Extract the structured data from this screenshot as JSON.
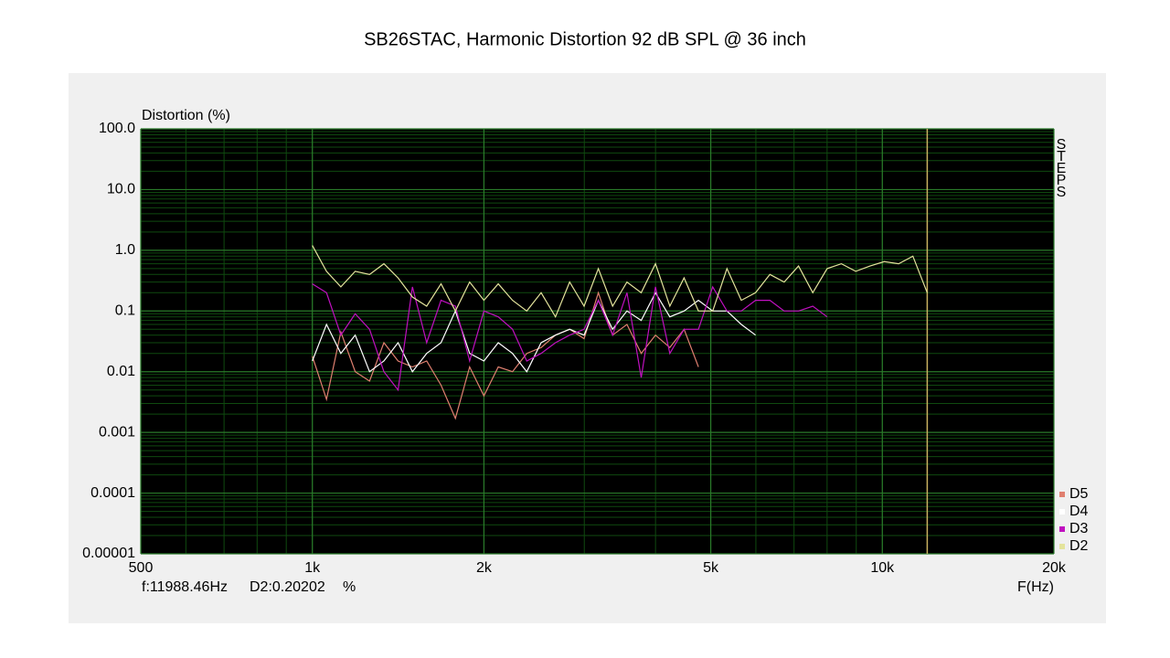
{
  "chart_data": {
    "type": "line",
    "title": "SB26STAC, Harmonic Distortion 92 dB SPL @ 36 inch",
    "y_label": "Distortion (%)",
    "x_label": "F(Hz)",
    "side_label": "STEPS",
    "log_x": true,
    "log_y": true,
    "grid": true,
    "legend": "lower right",
    "xlim": [
      500,
      20000
    ],
    "ylim": [
      1e-05,
      100
    ],
    "xticks": [
      500,
      {
        "value": 1000,
        "label": "1k"
      },
      {
        "value": 2000,
        "label": "2k"
      },
      {
        "value": 5000,
        "label": "5k"
      },
      {
        "value": 10000,
        "label": "10k"
      },
      {
        "value": 20000,
        "label": "20k"
      }
    ],
    "yticks": [
      {
        "value": 100,
        "label": "100.0"
      },
      {
        "value": 10,
        "label": "10.0"
      },
      {
        "value": 1,
        "label": "1.0"
      },
      0.1,
      0.01,
      0.001,
      0.0001,
      1e-05
    ],
    "cursor_x": 11988.46,
    "cursor_color": "#c8b060",
    "cursor_freq_label": "f:11988.46Hz",
    "cursor_value_label": "D2:0.20202",
    "cursor_unit": "%",
    "x": [
      1000,
      1059,
      1122,
      1189,
      1260,
      1335,
      1414,
      1498,
      1587,
      1682,
      1782,
      1888,
      2000,
      2119,
      2245,
      2378,
      2520,
      2670,
      2828,
      2997,
      3175,
      3364,
      3564,
      3775,
      4000,
      4238,
      4490,
      4757,
      5040,
      5339,
      5657,
      5993,
      6350,
      6727,
      7127,
      7551,
      8000,
      8476,
      8980,
      9514,
      10079,
      10679,
      11314,
      11987
    ],
    "series": [
      {
        "name": "D5",
        "color": "#e08070",
        "values": [
          0.018,
          0.0035,
          0.045,
          0.01,
          0.007,
          0.03,
          0.015,
          0.012,
          0.015,
          0.006,
          0.0017,
          0.012,
          0.004,
          0.012,
          0.01,
          0.02,
          0.025,
          0.04,
          0.05,
          0.035,
          0.2,
          0.04,
          0.06,
          0.02,
          0.04,
          0.025,
          0.05,
          0.012,
          null,
          null,
          null,
          null,
          null,
          null,
          null,
          null,
          null,
          null,
          null,
          null,
          null,
          null,
          null,
          null
        ]
      },
      {
        "name": "D4",
        "color": "#ffffff",
        "values": [
          0.015,
          0.06,
          0.02,
          0.04,
          0.01,
          0.015,
          0.03,
          0.01,
          0.02,
          0.03,
          0.1,
          0.02,
          0.015,
          0.03,
          0.02,
          0.01,
          0.03,
          0.04,
          0.05,
          0.04,
          0.15,
          0.05,
          0.1,
          0.07,
          0.2,
          0.08,
          0.1,
          0.15,
          0.1,
          0.1,
          0.06,
          0.04,
          null,
          null,
          null,
          null,
          null,
          null,
          null,
          null,
          null,
          null,
          null,
          null
        ]
      },
      {
        "name": "D3",
        "color": "#c010c0",
        "values": [
          0.28,
          0.2,
          0.04,
          0.09,
          0.05,
          0.01,
          0.005,
          0.25,
          0.03,
          0.15,
          0.12,
          0.015,
          0.1,
          0.08,
          0.05,
          0.015,
          0.02,
          0.03,
          0.04,
          0.05,
          0.15,
          0.04,
          0.2,
          0.008,
          0.25,
          0.02,
          0.05,
          0.05,
          0.25,
          0.1,
          0.1,
          0.15,
          0.15,
          0.1,
          0.1,
          0.12,
          0.08,
          null,
          null,
          null,
          null,
          null,
          null,
          null
        ]
      },
      {
        "name": "D2",
        "color": "#e4e49c",
        "values": [
          1.2,
          0.45,
          0.25,
          0.45,
          0.4,
          0.6,
          0.35,
          0.17,
          0.12,
          0.28,
          0.1,
          0.3,
          0.15,
          0.28,
          0.15,
          0.1,
          0.2,
          0.08,
          0.3,
          0.12,
          0.5,
          0.12,
          0.3,
          0.2,
          0.6,
          0.12,
          0.35,
          0.1,
          0.1,
          0.5,
          0.15,
          0.2,
          0.4,
          0.3,
          0.55,
          0.2,
          0.5,
          0.6,
          0.45,
          0.55,
          0.65,
          0.6,
          0.8,
          0.2
        ]
      }
    ]
  }
}
